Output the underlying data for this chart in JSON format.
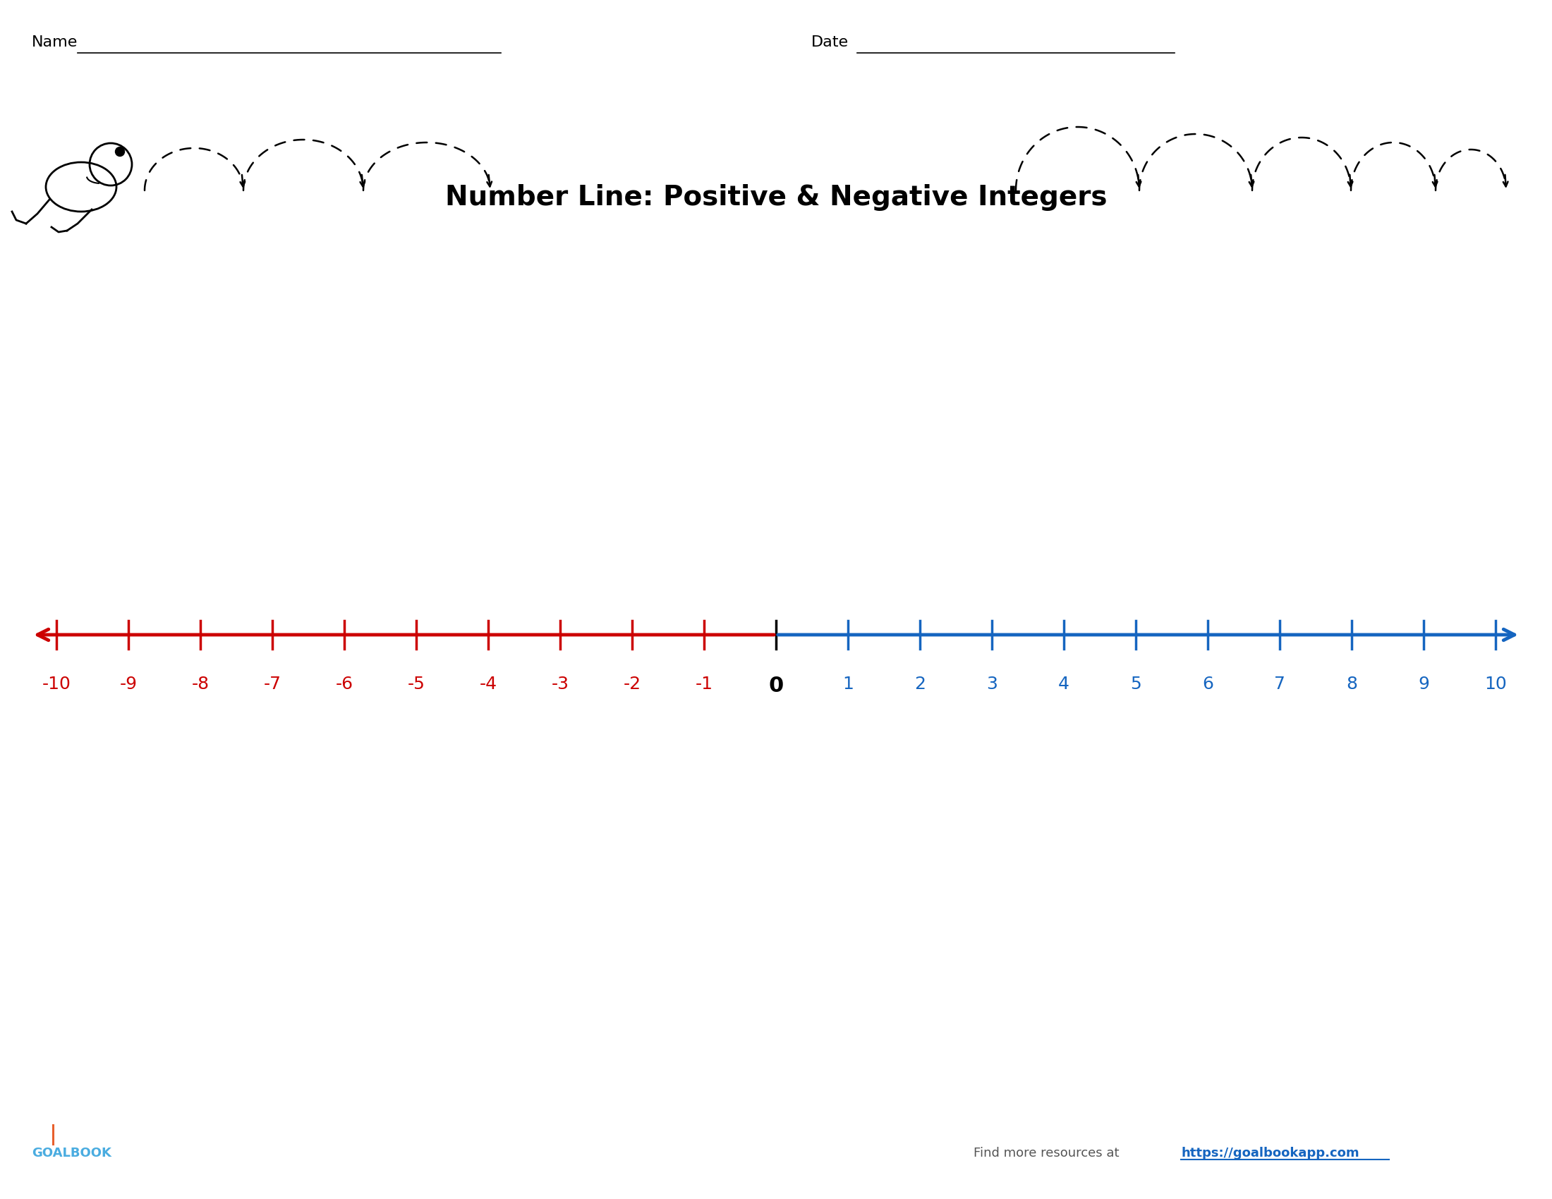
{
  "title": "Number Line: Positive & Negative Integers",
  "title_fontsize": 28,
  "title_fontweight": "bold",
  "name_label": "Name",
  "date_label": "Date",
  "negative_color": "#CC0000",
  "positive_color": "#1565C0",
  "zero_color": "#000000",
  "background_color": "#FFFFFF",
  "footer_text": "Find more resources at ",
  "footer_link": "https://goalbookapp.com",
  "footer_link_color": "#1565C0",
  "footer_text_color": "#555555",
  "goalbook_color": "#4AACE0",
  "goalbook_orange": "#E8602C"
}
